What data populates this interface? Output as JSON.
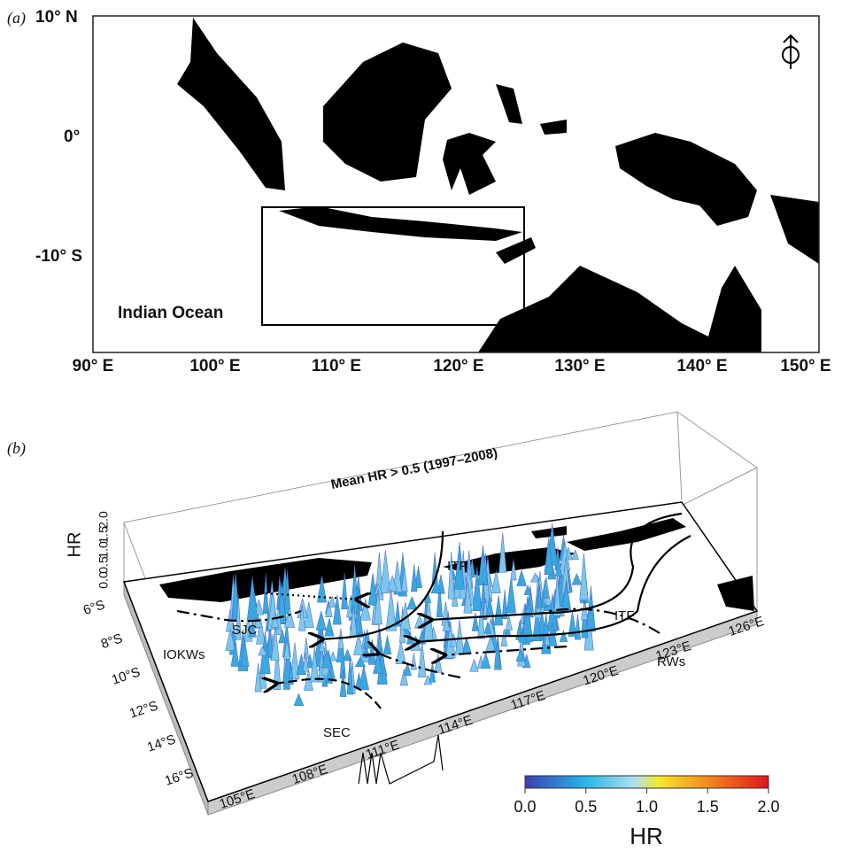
{
  "panel_a": {
    "label": "(a)",
    "lat_labels": [
      "10° N",
      "0°",
      "-10° S"
    ],
    "lon_labels": [
      "90° E",
      "100° E",
      "110° E",
      "120° E",
      "130° E",
      "140° E",
      "150° E"
    ],
    "annotation": "Indian Ocean"
  },
  "panel_b": {
    "label": "(b)",
    "title": "Mean HR > 0.5 (1997–2008)",
    "z_axis_label": "HR",
    "z_ticks": [
      "0.0",
      "0.5",
      "1.0",
      "1.5",
      "2.0"
    ],
    "lat_labels": [
      "6°S",
      "8°S",
      "10°S",
      "12°S",
      "14°S",
      "16°S"
    ],
    "lon_labels": [
      "105°E",
      "108°E",
      "111°E",
      "114°E",
      "117°E",
      "120°E",
      "123°E",
      "126°E"
    ],
    "flow_labels": [
      "ITF",
      "ITF",
      "SJC",
      "IOKWs",
      "SEC",
      "RWs"
    ],
    "colorbar": {
      "ticks": [
        "0.0",
        "0.5",
        "1.0",
        "1.5",
        "2.0"
      ],
      "label": "HR"
    }
  }
}
